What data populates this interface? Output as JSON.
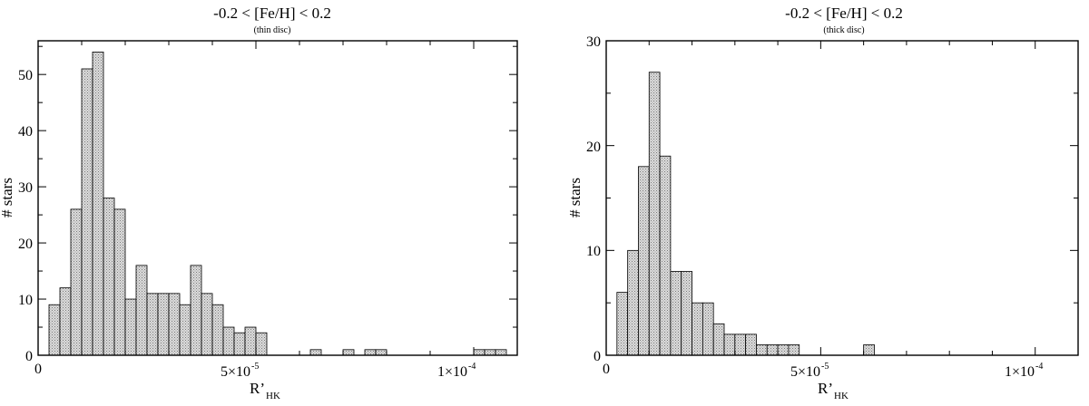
{
  "charts": [
    {
      "title": "-0.2 < [Fe/H] < 0.2",
      "subtitle": "(thin disc)",
      "ylabel": "# stars",
      "xlabel_main": "R’",
      "xlabel_sub": "HK",
      "x_ticks": [
        "0",
        "5×10",
        "1×10"
      ],
      "x_tick_exps": [
        "",
        "-5",
        "-4"
      ],
      "y_ticks": [
        "0",
        "10",
        "20",
        "30",
        "40",
        "50"
      ]
    },
    {
      "title": "-0.2 < [Fe/H] < 0.2",
      "subtitle": "(thick disc)",
      "ylabel": "# stars",
      "xlabel_main": "R’",
      "xlabel_sub": "HK",
      "x_ticks": [
        "0",
        "5×10",
        "1×10"
      ],
      "x_tick_exps": [
        "",
        "-5",
        "-4"
      ],
      "y_ticks": [
        "0",
        "10",
        "20",
        "30"
      ]
    }
  ],
  "chart_data": [
    {
      "type": "bar",
      "title": "-0.2 < [Fe/H] < 0.2",
      "subtitle": "(thin disc)",
      "xlabel": "R'HK",
      "ylabel": "# stars",
      "xlim": [
        0,
        0.00011
      ],
      "ylim": [
        0,
        56
      ],
      "bin_width": 2.5e-06,
      "x_bin_starts": [
        2.5e-06,
        5e-06,
        7.5e-06,
        1e-05,
        1.25e-05,
        1.5e-05,
        1.75e-05,
        2e-05,
        2.25e-05,
        2.5e-05,
        2.75e-05,
        3e-05,
        3.25e-05,
        3.5e-05,
        3.75e-05,
        4e-05,
        4.25e-05,
        4.5e-05,
        4.75e-05,
        5e-05,
        5.25e-05,
        5.5e-05,
        5.75e-05,
        6e-05,
        6.25e-05,
        6.5e-05,
        6.75e-05,
        7e-05,
        7.25e-05,
        7.5e-05,
        7.75e-05,
        8e-05,
        8.25e-05,
        8.5e-05,
        8.75e-05,
        9e-05,
        9.25e-05,
        9.5e-05,
        9.75e-05,
        0.0001,
        0.0001025,
        0.000105
      ],
      "values": [
        9,
        12,
        26,
        51,
        54,
        28,
        26,
        10,
        16,
        11,
        11,
        11,
        9,
        16,
        11,
        9,
        5,
        4,
        5,
        4,
        0,
        0,
        0,
        0,
        1,
        0,
        0,
        1,
        0,
        1,
        1,
        0,
        0,
        0,
        0,
        0,
        0,
        0,
        0,
        1,
        1,
        1
      ],
      "y_ticks": [
        0,
        10,
        20,
        30,
        40,
        50
      ],
      "x_ticks": [
        0,
        5e-05,
        0.0001
      ]
    },
    {
      "type": "bar",
      "title": "-0.2 < [Fe/H] < 0.2",
      "subtitle": "(thick disc)",
      "xlabel": "R'HK",
      "ylabel": "# stars",
      "xlim": [
        0,
        0.00011
      ],
      "ylim": [
        0,
        30
      ],
      "bin_width": 2.5e-06,
      "x_bin_starts": [
        2.5e-06,
        5e-06,
        7.5e-06,
        1e-05,
        1.25e-05,
        1.5e-05,
        1.75e-05,
        2e-05,
        2.25e-05,
        2.5e-05,
        2.75e-05,
        3e-05,
        3.25e-05,
        3.5e-05,
        3.75e-05,
        4e-05,
        4.25e-05,
        4.5e-05,
        4.75e-05,
        5e-05,
        5.25e-05,
        5.5e-05,
        5.75e-05,
        6e-05
      ],
      "values": [
        6,
        10,
        18,
        27,
        19,
        8,
        8,
        5,
        5,
        3,
        2,
        2,
        2,
        1,
        1,
        1,
        1,
        0,
        0,
        0,
        0,
        0,
        0,
        1
      ],
      "y_ticks": [
        0,
        10,
        20,
        30
      ],
      "x_ticks": [
        0,
        5e-05,
        0.0001
      ]
    }
  ]
}
